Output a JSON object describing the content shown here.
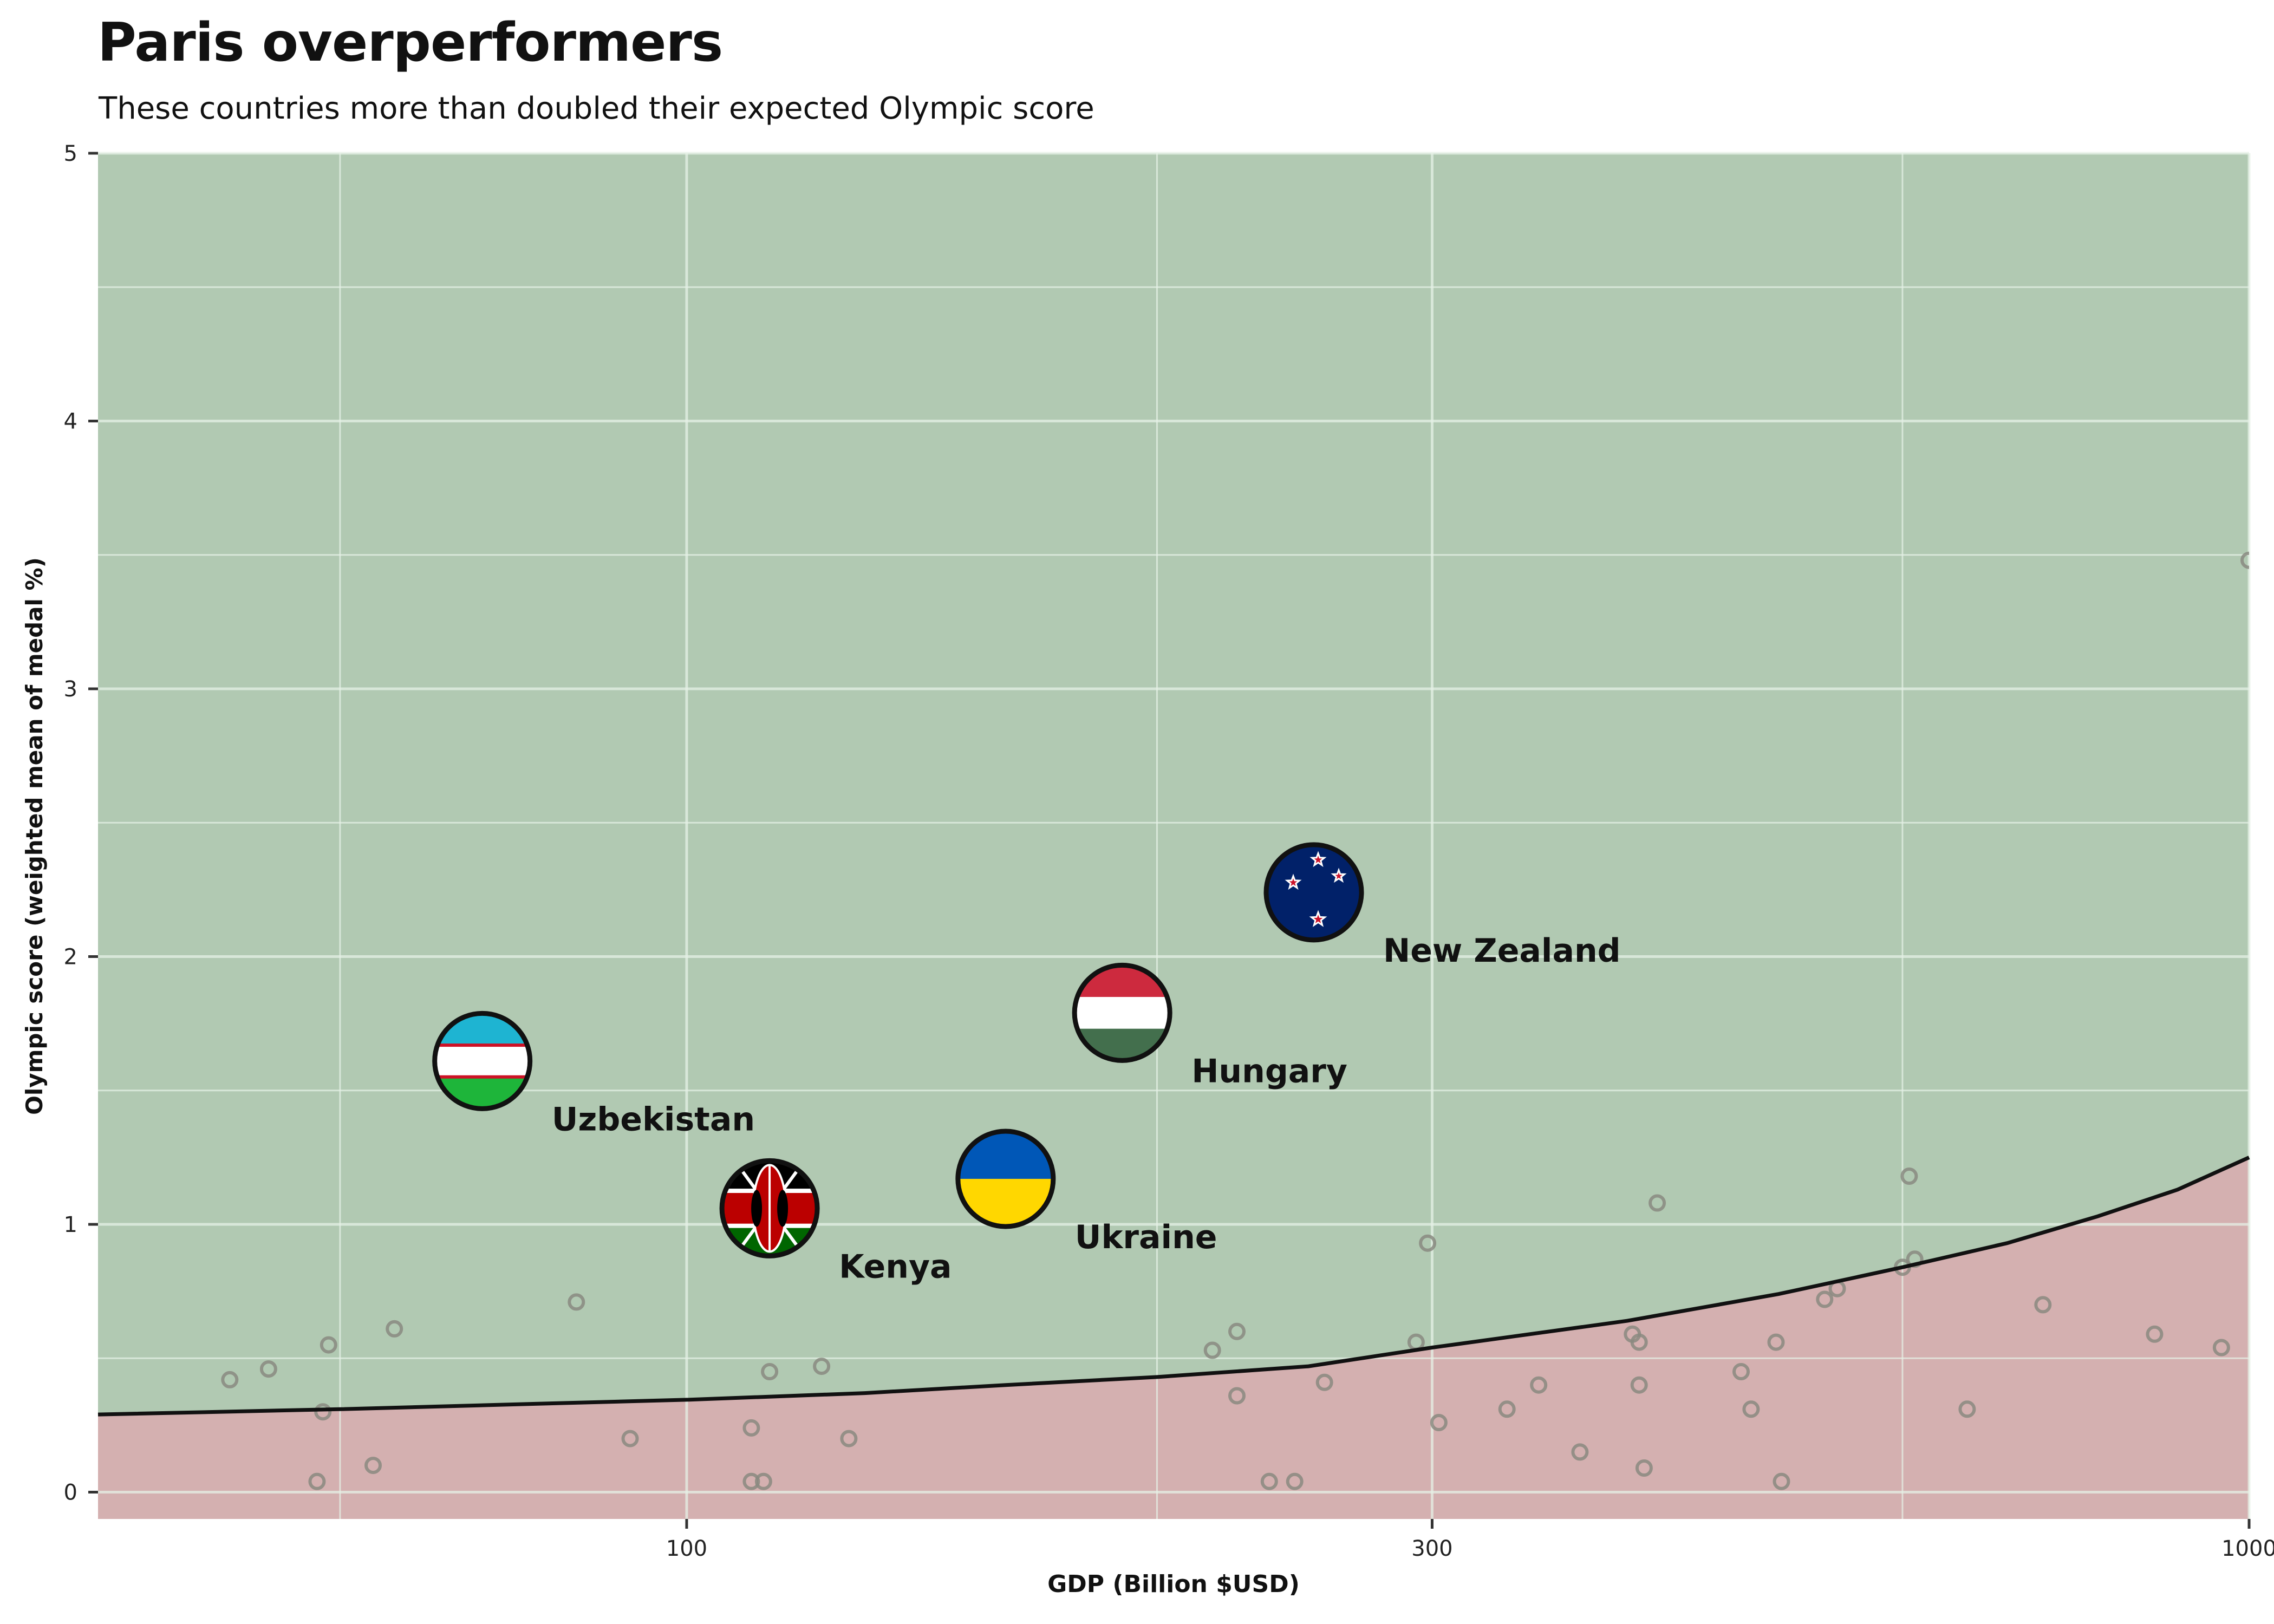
{
  "chart_data": {
    "type": "scatter",
    "title": "Paris overperformers",
    "subtitle": "These countries more than doubled their expected Olympic score",
    "xlabel": "GDP (Billion $USD)",
    "ylabel": "Olympic score (weighted mean of medal %)",
    "x_scale": "log",
    "xlim": [
      42,
      1000
    ],
    "ylim": [
      -0.1,
      5
    ],
    "x_ticks": [
      100,
      300,
      1000
    ],
    "y_ticks": [
      0,
      1,
      2,
      3,
      4,
      5
    ],
    "x_minor_ticks": [
      60,
      200,
      600
    ],
    "y_minor_ticks": [
      0.5,
      1.5,
      2.5,
      3.5,
      4.5
    ],
    "grid": true,
    "expected_curve": [
      [
        42,
        0.29
      ],
      [
        60,
        0.31
      ],
      [
        80,
        0.33
      ],
      [
        100,
        0.345
      ],
      [
        130,
        0.37
      ],
      [
        160,
        0.4
      ],
      [
        200,
        0.43
      ],
      [
        250,
        0.47
      ],
      [
        300,
        0.54
      ],
      [
        400,
        0.64
      ],
      [
        500,
        0.74
      ],
      [
        600,
        0.84
      ],
      [
        700,
        0.93
      ],
      [
        800,
        1.03
      ],
      [
        900,
        1.13
      ],
      [
        1000,
        1.25
      ]
    ],
    "colors": {
      "overperform_region": "#b1c9b2",
      "underperform_region": "#d4b0b0",
      "curve": "#111111",
      "background_points": "#8a8a80",
      "grid": "#d6e2d5"
    },
    "highlighted": [
      {
        "name": "New Zealand",
        "x": 252,
        "y": 2.24,
        "flag": "new-zealand-flag"
      },
      {
        "name": "Hungary",
        "x": 190,
        "y": 1.79,
        "flag": "hungary-flag"
      },
      {
        "name": "Uzbekistan",
        "x": 74,
        "y": 1.61,
        "flag": "uzbekistan-flag"
      },
      {
        "name": "Ukraine",
        "x": 160,
        "y": 1.17,
        "flag": "ukraine-flag"
      },
      {
        "name": "Kenya",
        "x": 113,
        "y": 1.06,
        "flag": "kenya-flag"
      }
    ],
    "others": [
      [
        51,
        0.42
      ],
      [
        54,
        0.46
      ],
      [
        59,
        0.55
      ],
      [
        58,
        0.04
      ],
      [
        58.5,
        0.3
      ],
      [
        63,
        0.1
      ],
      [
        65,
        0.61
      ],
      [
        85,
        0.71
      ],
      [
        92,
        0.2
      ],
      [
        110,
        0.24
      ],
      [
        110,
        0.04
      ],
      [
        112,
        0.04
      ],
      [
        113,
        0.45
      ],
      [
        122,
        0.47
      ],
      [
        127,
        0.2
      ],
      [
        217,
        0.53
      ],
      [
        225,
        0.36
      ],
      [
        225,
        0.6
      ],
      [
        236,
        0.04
      ],
      [
        245,
        0.04
      ],
      [
        256,
        0.41
      ],
      [
        293,
        0.56
      ],
      [
        298,
        0.93
      ],
      [
        303,
        0.26
      ],
      [
        335,
        0.31
      ],
      [
        351,
        0.4
      ],
      [
        373,
        0.15
      ],
      [
        403,
        0.59
      ],
      [
        407,
        0.56
      ],
      [
        407,
        0.4
      ],
      [
        410,
        0.09
      ],
      [
        418,
        1.08
      ],
      [
        473,
        0.45
      ],
      [
        480,
        0.31
      ],
      [
        498,
        0.56
      ],
      [
        502,
        0.04
      ],
      [
        535,
        0.72
      ],
      [
        545,
        0.76
      ],
      [
        600,
        0.84
      ],
      [
        606,
        1.18
      ],
      [
        611,
        0.87
      ],
      [
        660,
        0.31
      ],
      [
        738,
        0.7
      ],
      [
        870,
        0.59
      ],
      [
        960,
        0.54
      ],
      [
        1000,
        3.48
      ]
    ]
  }
}
